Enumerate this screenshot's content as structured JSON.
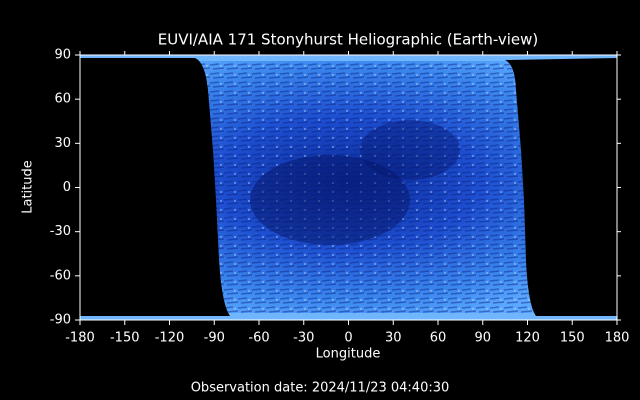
{
  "chart_data": {
    "type": "image",
    "title": "EUVI/AIA 171 Stonyhurst Heliographic (Earth-view)",
    "xlabel": "Longitude",
    "ylabel": "Latitude",
    "xlim": [
      -180,
      180
    ],
    "ylim": [
      -90,
      90
    ],
    "xticks": [
      -180,
      -150,
      -120,
      -90,
      -60,
      -30,
      0,
      30,
      60,
      90,
      120,
      150,
      180
    ],
    "yticks": [
      -90,
      -60,
      -30,
      0,
      30,
      60,
      90
    ],
    "footer": "Observation date: 2024/11/23 04:40:30"
  }
}
